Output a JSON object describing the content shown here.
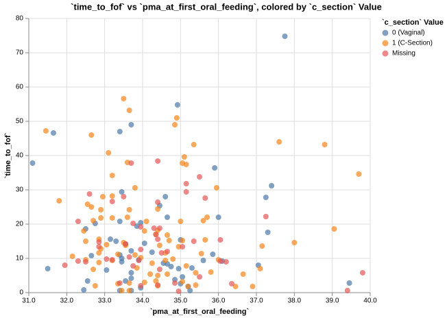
{
  "chart_data": {
    "type": "scatter",
    "title": "`time_to_fof` vs `pma_at_first_oral_feeding`, colored by `c_section` Value",
    "x_label": "`pma_at_first_oral_feeding`",
    "y_label": "`time_to_fof`",
    "legend_title": "`c_section` Value",
    "legend": "right",
    "grid": true,
    "xlim": [
      31,
      40
    ],
    "xticks": [
      {
        "value": 31,
        "label": "31.0"
      },
      {
        "value": 32,
        "label": "32.0"
      },
      {
        "value": 33,
        "label": "33.0"
      },
      {
        "value": 34,
        "label": "34.0"
      },
      {
        "value": 35,
        "label": "35.0"
      },
      {
        "value": 36,
        "label": "36.0"
      },
      {
        "value": 37,
        "label": "37.0"
      },
      {
        "value": 38,
        "label": "38.0"
      },
      {
        "value": 39,
        "label": "39.0"
      },
      {
        "value": 40,
        "label": "40.0"
      }
    ],
    "ylim": [
      0,
      80
    ],
    "yticks": [
      0,
      10,
      20,
      30,
      40,
      50,
      60,
      70,
      80
    ],
    "series": [
      {
        "name": "0 (Vaginal)",
        "color": "#4c78a8",
        "x": [
          31.1,
          31.65,
          31.5,
          37.75,
          34.92,
          33.7,
          33.4,
          35.9,
          37.4,
          37.25,
          33.45,
          34.6,
          34.45,
          36.0,
          34.65,
          32.75,
          32.5,
          33.4,
          33.85,
          33.95,
          37.3,
          34.05,
          33.15,
          33.3,
          33.55,
          33.7,
          34.25,
          33.4,
          32.65,
          35.0,
          35.85,
          36.1,
          34.55,
          34.65,
          34.75,
          34.95,
          33.9,
          33.45,
          33.45,
          37.05,
          35.6,
          35.3,
          33.7,
          33.7,
          33.05,
          32.55,
          33.55,
          34.85,
          35.0,
          35.2,
          35.25,
          32.45,
          33.4,
          33.7,
          33.95,
          39.45,
          35.05
        ],
        "values": [
          37.8,
          46.6,
          7,
          74.8,
          54.8,
          49,
          47,
          36.4,
          31.2,
          27.8,
          29.4,
          28,
          25.4,
          22,
          22,
          20.2,
          18.6,
          20.8,
          19.4,
          20.4,
          17.6,
          14.4,
          15.6,
          15,
          14.2,
          12.2,
          11.8,
          11,
          10.8,
          15.4,
          11.2,
          9.2,
          8.6,
          8.4,
          7.6,
          7,
          9.6,
          9,
          10,
          8,
          9.4,
          7.2,
          5.8,
          4.2,
          6.6,
          3.4,
          3.4,
          3.8,
          2.6,
          1.8,
          0.6,
          0.8,
          0.6,
          0.6,
          1.4,
          2.8,
          4.6
        ]
      },
      {
        "name": "1 (C-Section)",
        "color": "#f58518",
        "x": [
          31.45,
          32.65,
          33.5,
          33.65,
          34.9,
          34.85,
          33.1,
          37.6,
          38.8,
          35.35,
          35.1,
          35.05,
          35.15,
          33.6,
          39.7,
          33.2,
          35.95,
          33.8,
          32.95,
          33.2,
          31.8,
          32.55,
          32.65,
          32.9,
          33.65,
          34.4,
          32.7,
          32.9,
          33.2,
          33.6,
          34.1,
          35.0,
          35.6,
          35.7,
          32.45,
          34.05,
          34.4,
          34.35,
          34.65,
          39.05,
          38.0,
          37.15,
          32.85,
          32.5,
          33.5,
          34.7,
          35.05,
          35.65,
          32.9,
          33.05,
          33.55,
          34.45,
          34.95,
          32.85,
          34.6,
          33.35,
          33.8,
          32.15,
          32.5,
          33.95,
          34.6,
          35.55,
          32.85,
          33.2,
          34.25,
          34.8,
          36.0,
          37.1,
          35.15,
          35.4,
          35.8,
          36.65,
          32.7,
          33.85,
          34.2,
          34.65,
          32.75,
          33.35,
          33.65,
          34.05,
          34.35,
          34.4,
          35.05,
          35.4,
          36.9,
          36.45,
          33.65,
          33.45,
          34.4,
          35.2
        ],
        "values": [
          47.2,
          46,
          56.6,
          53.2,
          51,
          49,
          40.8,
          44,
          43.2,
          43.2,
          39.6,
          37.8,
          37.4,
          38,
          34.6,
          34.2,
          30.6,
          30.6,
          28,
          28.2,
          26.8,
          25.8,
          25,
          24.2,
          24.2,
          24.4,
          21,
          21.8,
          21.8,
          22,
          20.8,
          20.8,
          21,
          22,
          18,
          18,
          18.2,
          17,
          16.8,
          18.6,
          14.6,
          13.6,
          15.6,
          15,
          14.6,
          15.2,
          15.2,
          15.4,
          12.8,
          14,
          13.8,
          13.8,
          13.4,
          11.6,
          11.6,
          11.2,
          11,
          10.6,
          9.6,
          10.2,
          9.4,
          11.4,
          8.8,
          9.4,
          8.6,
          9.8,
          9.6,
          7,
          7.8,
          5.8,
          6,
          5.4,
          6.8,
          7.2,
          5.4,
          5.4,
          2,
          2.6,
          2.8,
          3,
          3.4,
          5,
          3.2,
          2.2,
          1.8,
          1.8,
          0.6,
          0.6,
          2,
          1.8
        ]
      },
      {
        "name": "Missing",
        "color": "#e45756",
        "x": [
          34.4,
          33.7,
          35.5,
          35.15,
          32.6,
          33.5,
          35.15,
          34.4,
          35.65,
          33.2,
          32.3,
          33.75,
          34.3,
          34.45,
          34.35,
          37.25,
          33.95,
          36.05,
          32.85,
          33.55,
          35.35,
          34.4,
          32.85,
          35.05,
          33.95,
          34.5,
          33.65,
          34.65,
          33.9,
          33.05,
          33.2,
          36.05,
          36.2,
          32.3,
          32.5,
          31.95,
          33.75,
          34.45,
          35.5,
          33.95,
          34.4,
          34.85,
          36.35,
          33.4,
          39.8,
          39.4,
          34.95
        ],
        "values": [
          38.4,
          37.8,
          33.8,
          31.8,
          28.8,
          28,
          29.4,
          26.4,
          27.6,
          26.6,
          20.8,
          20.2,
          18.8,
          18.8,
          17,
          22.2,
          19.2,
          15.4,
          14.8,
          14.2,
          15,
          15.6,
          13.4,
          13.4,
          12.6,
          11.6,
          10.4,
          12,
          9.4,
          9.8,
          9.6,
          9.2,
          9,
          9.2,
          9,
          8,
          7.8,
          6.8,
          4.6,
          2,
          2.2,
          2.8,
          2.6,
          2.8,
          5.8,
          0.6,
          0.4
        ]
      }
    ]
  }
}
